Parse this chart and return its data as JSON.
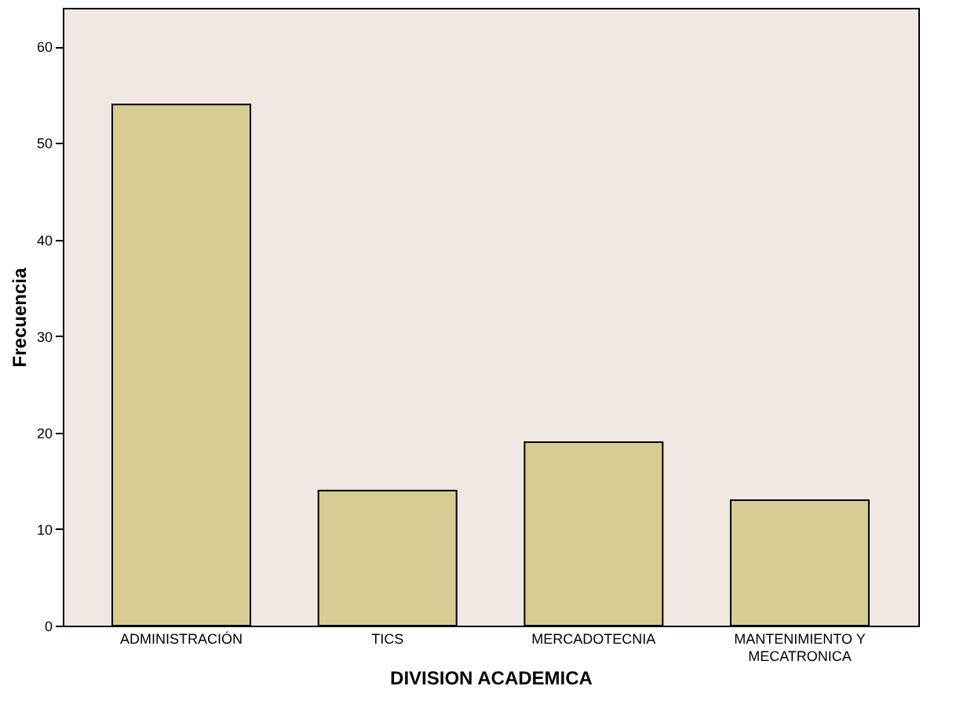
{
  "chart_data": {
    "type": "bar",
    "xlabel": "DIVISION ACADEMICA",
    "ylabel": "Frecuencia",
    "categories": [
      "ADMINISTRACIÓN",
      "TICS",
      "MERCADOTECNIA",
      "MANTENIMIENTO Y\nMECATRONICA"
    ],
    "values": [
      54,
      14,
      19,
      13
    ],
    "color": "#d7cc91",
    "ylim": [
      0,
      64
    ],
    "yticks": [
      0,
      10,
      20,
      30,
      40,
      50,
      60
    ],
    "grid": false
  }
}
